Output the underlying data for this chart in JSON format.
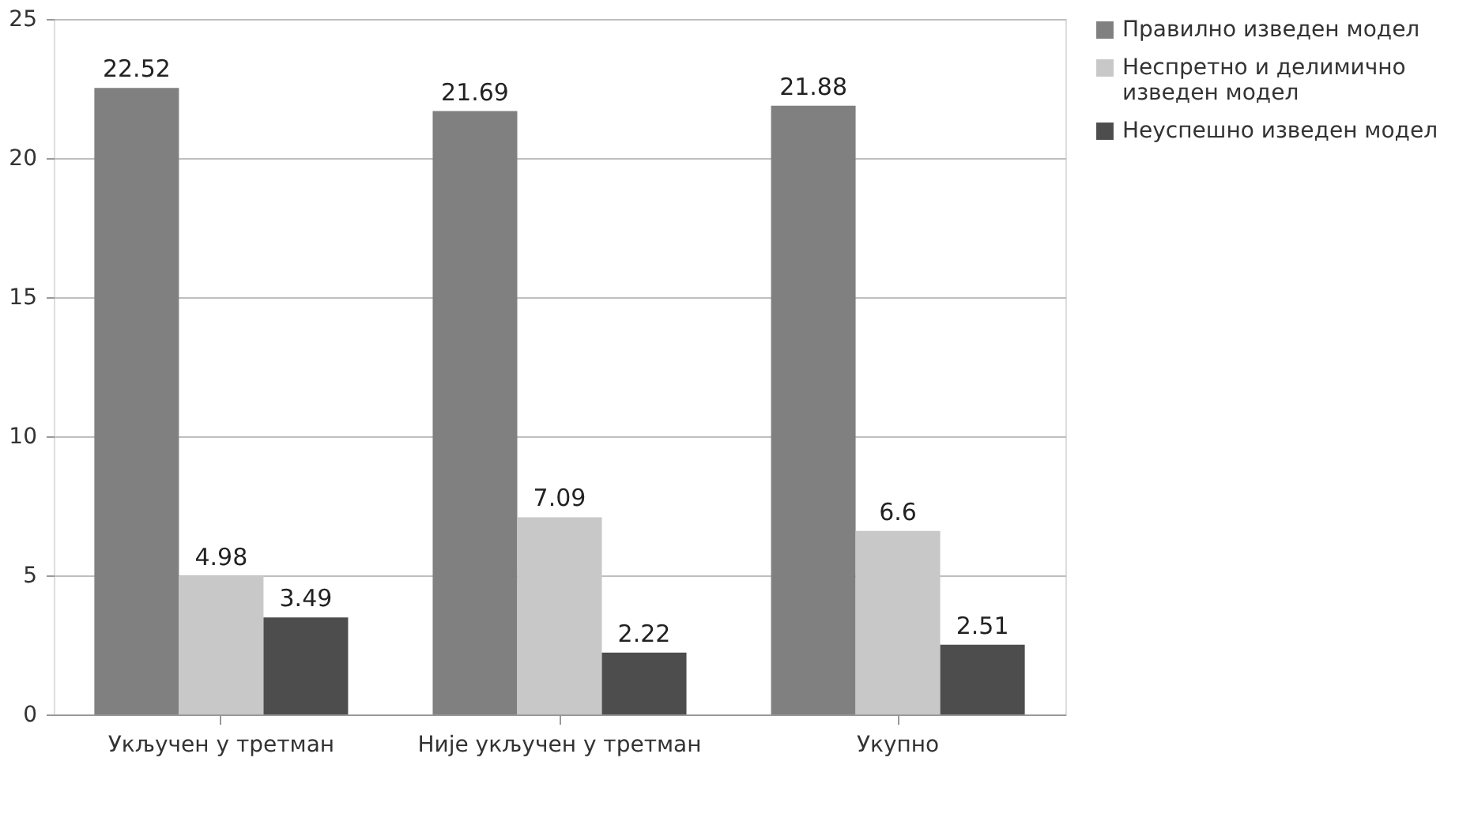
{
  "chart_data": {
    "type": "bar",
    "categories": [
      "Укључен у третман",
      "Није укључен у третман",
      "Укупно"
    ],
    "series": [
      {
        "name": "Правилно изведен модел",
        "color": "#808080",
        "values": [
          22.52,
          21.69,
          21.88
        ]
      },
      {
        "name": "Неспретно и делимично изведен модел",
        "color": "#c8c8c8",
        "values": [
          4.98,
          7.09,
          6.6
        ]
      },
      {
        "name": "Неуспешно изведен модел",
        "color": "#4d4d4d",
        "values": [
          3.49,
          2.22,
          2.51
        ]
      }
    ],
    "ylim": [
      0,
      25
    ],
    "yticks": [
      0,
      5,
      10,
      15,
      20,
      25
    ],
    "grid": "y",
    "legend": "right",
    "data_labels": true
  }
}
